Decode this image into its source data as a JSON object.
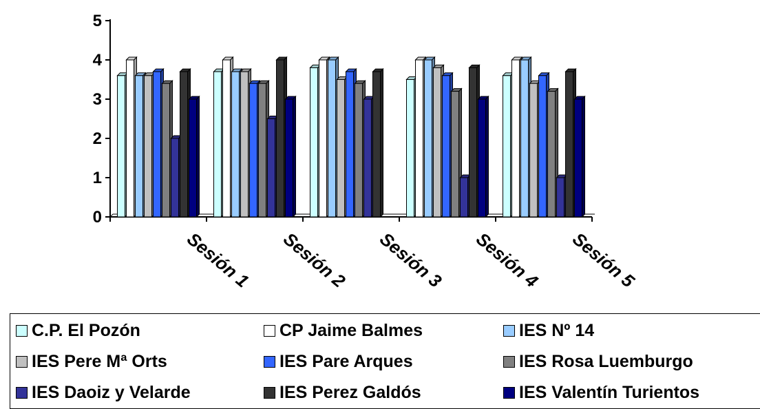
{
  "chart_data": {
    "type": "bar",
    "title": "",
    "xlabel": "",
    "ylabel": "",
    "ylim": [
      0,
      5
    ],
    "yticks": [
      "0",
      "1",
      "2",
      "3",
      "4",
      "5"
    ],
    "categories": [
      "Sesión 1",
      "Sesión 2",
      "Sesión 3",
      "Sesión 4",
      "Sesión 5"
    ],
    "legend_position": "bottom",
    "grid": false,
    "series": [
      {
        "name": "C.P. El Pozón",
        "color": "#ccffff",
        "values": [
          3.6,
          3.7,
          3.8,
          3.5,
          3.6
        ]
      },
      {
        "name": "CP Jaime Balmes",
        "color": "#ffffff",
        "values": [
          4.0,
          4.0,
          4.0,
          4.0,
          4.0
        ]
      },
      {
        "name": "IES Nº 14",
        "color": "#99ccff",
        "values": [
          3.6,
          3.7,
          4.0,
          4.0,
          4.0
        ]
      },
      {
        "name": "IES Pere Mª Orts",
        "color": "#c0c0c0",
        "values": [
          3.6,
          3.7,
          3.5,
          3.8,
          3.4
        ]
      },
      {
        "name": "IES Pare Arques",
        "color": "#3366ff",
        "values": [
          3.7,
          3.4,
          3.7,
          3.6,
          3.6
        ]
      },
      {
        "name": "IES Rosa Luemburgo",
        "color": "#808080",
        "values": [
          3.4,
          3.4,
          3.4,
          3.2,
          3.2
        ]
      },
      {
        "name": "IES Daoiz y Velarde",
        "color": "#333399",
        "values": [
          2.0,
          2.5,
          3.0,
          1.0,
          1.0
        ]
      },
      {
        "name": "IES Perez Galdós",
        "color": "#333333",
        "values": [
          3.7,
          4.0,
          3.7,
          3.8,
          3.7
        ]
      },
      {
        "name": "IES Valentín Turientos",
        "color": "#000080",
        "values": [
          3.0,
          3.0,
          0,
          3.0,
          3.0
        ]
      }
    ]
  }
}
